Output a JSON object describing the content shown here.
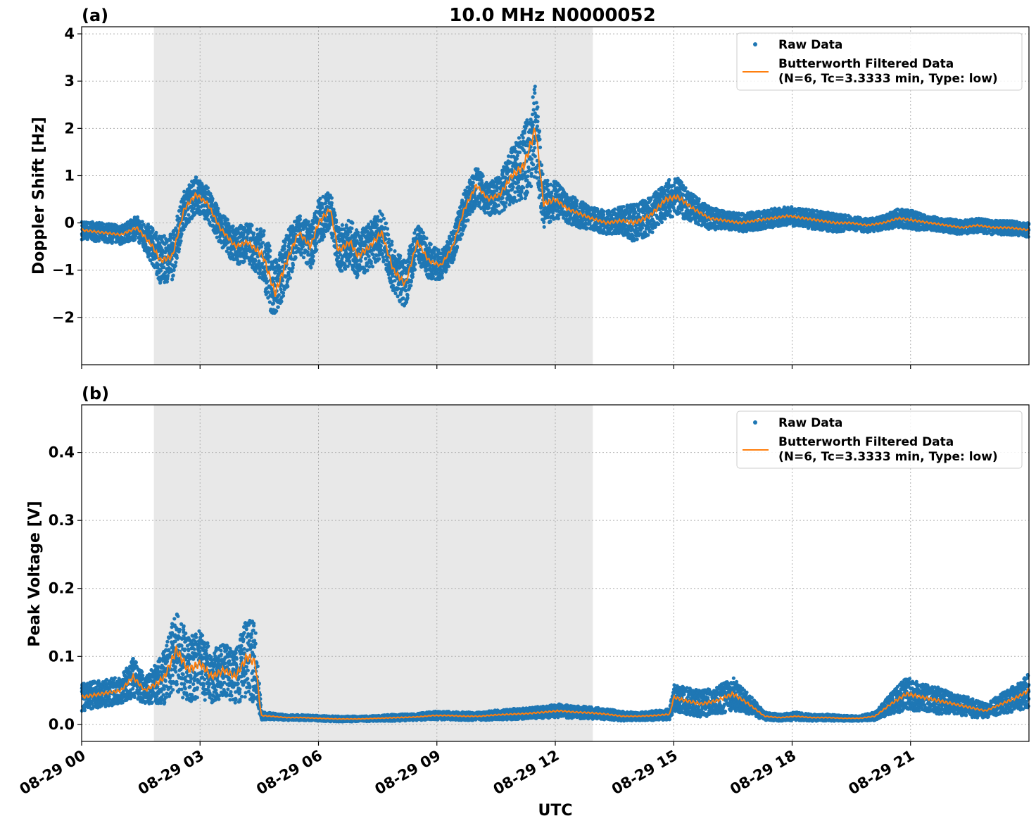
{
  "figure": {
    "title": "10.0 MHz N0000052",
    "xlabel": "UTC"
  },
  "colors": {
    "raw": "#1f77b4",
    "filtered": "#ff7f0e",
    "shade": "#e8e8e8",
    "grid": "#b0b0b0"
  },
  "legend": {
    "raw_label": "Raw Data",
    "filtered_line1": "Butterworth Filtered Data",
    "filtered_line2": "(N=6, Tc=3.3333 min, Type: low)"
  },
  "chart_data": [
    {
      "type": "scatter",
      "panel_label": "(a)",
      "title": "10.0 MHz N0000052",
      "xlabel": "",
      "ylabel": "Doppler Shift [Hz]",
      "xlim": [
        0,
        24
      ],
      "ylim": [
        -3.0,
        4.15
      ],
      "yticks": [
        -2,
        -1,
        0,
        1,
        2,
        3,
        4
      ],
      "ytick_labels": [
        "−2",
        "−1",
        "0",
        "1",
        "2",
        "3",
        "4"
      ],
      "xticks": [
        0,
        3,
        6,
        9,
        12,
        15,
        18,
        21
      ],
      "xtick_labels": [
        "08-29 00",
        "08-29 03",
        "08-29 06",
        "08-29 09",
        "08-29 12",
        "08-29 15",
        "08-29 18",
        "08-29 21"
      ],
      "shaded_span": [
        1.83,
        12.95
      ],
      "grid": true,
      "legend_position": "top-right",
      "series": [
        {
          "name": "Raw Data",
          "style": "points",
          "x": [
            0.0,
            0.5,
            1.0,
            1.4,
            1.8,
            2.0,
            2.3,
            2.6,
            2.9,
            3.2,
            3.5,
            3.9,
            4.2,
            4.6,
            4.9,
            5.2,
            5.5,
            5.8,
            6.0,
            6.3,
            6.5,
            6.8,
            7.0,
            7.3,
            7.6,
            7.9,
            8.2,
            8.5,
            8.8,
            9.1,
            9.4,
            9.7,
            10.0,
            10.3,
            10.6,
            10.9,
            11.2,
            11.5,
            11.7,
            12.0,
            12.3,
            12.6,
            12.9,
            13.3,
            13.7,
            14.0,
            14.4,
            14.8,
            15.1,
            15.5,
            15.9,
            16.3,
            16.7,
            17.1,
            17.5,
            17.9,
            18.3,
            18.7,
            19.1,
            19.5,
            19.9,
            20.3,
            20.7,
            21.1,
            21.5,
            21.9,
            22.3,
            22.7,
            23.1,
            23.5,
            23.99
          ],
          "y": [
            -0.15,
            -0.2,
            -0.25,
            -0.1,
            -0.5,
            -0.8,
            -0.7,
            0.3,
            0.6,
            0.4,
            -0.1,
            -0.5,
            -0.4,
            -0.7,
            -1.5,
            -0.8,
            -0.2,
            -0.5,
            0.0,
            0.3,
            -0.6,
            -0.4,
            -0.7,
            -0.5,
            -0.2,
            -1.0,
            -1.3,
            -0.4,
            -0.8,
            -0.9,
            -0.5,
            0.3,
            0.8,
            0.5,
            0.6,
            1.0,
            1.2,
            2.0,
            0.4,
            0.5,
            0.3,
            0.2,
            0.1,
            0.0,
            0.05,
            0.0,
            0.15,
            0.5,
            0.55,
            0.3,
            0.1,
            0.05,
            0.0,
            0.05,
            0.1,
            0.15,
            0.1,
            0.05,
            0.0,
            0.0,
            -0.05,
            0.0,
            0.1,
            0.05,
            0.0,
            -0.05,
            -0.1,
            -0.05,
            -0.1,
            -0.1,
            -0.15
          ],
          "spread": [
            0.2,
            0.2,
            0.2,
            0.25,
            0.4,
            0.5,
            0.5,
            0.4,
            0.4,
            0.35,
            0.35,
            0.4,
            0.4,
            0.6,
            0.7,
            0.6,
            0.4,
            0.5,
            0.5,
            0.4,
            0.5,
            0.5,
            0.5,
            0.5,
            0.5,
            0.5,
            0.5,
            0.4,
            0.4,
            0.3,
            0.35,
            0.4,
            0.4,
            0.35,
            0.4,
            0.6,
            0.8,
            1.0,
            0.5,
            0.4,
            0.3,
            0.3,
            0.25,
            0.25,
            0.3,
            0.4,
            0.4,
            0.4,
            0.4,
            0.3,
            0.25,
            0.2,
            0.2,
            0.2,
            0.2,
            0.2,
            0.2,
            0.2,
            0.2,
            0.15,
            0.15,
            0.15,
            0.2,
            0.2,
            0.15,
            0.15,
            0.15,
            0.15,
            0.15,
            0.15,
            0.15
          ]
        },
        {
          "name": "Butterworth Filtered Data (N=6, Tc=3.3333 min, Type: low)",
          "style": "line",
          "x": [
            0.0,
            0.5,
            1.0,
            1.4,
            1.8,
            2.0,
            2.3,
            2.6,
            2.9,
            3.2,
            3.5,
            3.9,
            4.2,
            4.6,
            4.9,
            5.2,
            5.5,
            5.8,
            6.0,
            6.3,
            6.5,
            6.8,
            7.0,
            7.3,
            7.6,
            7.9,
            8.2,
            8.5,
            8.8,
            9.1,
            9.4,
            9.7,
            10.0,
            10.3,
            10.6,
            10.9,
            11.2,
            11.5,
            11.7,
            12.0,
            12.3,
            12.6,
            12.9,
            13.3,
            13.7,
            14.0,
            14.4,
            14.8,
            15.1,
            15.5,
            15.9,
            16.3,
            16.7,
            17.1,
            17.5,
            17.9,
            18.3,
            18.7,
            19.1,
            19.5,
            19.9,
            20.3,
            20.7,
            21.1,
            21.5,
            21.9,
            22.3,
            22.7,
            23.1,
            23.5,
            23.99
          ],
          "y": [
            -0.15,
            -0.2,
            -0.25,
            -0.1,
            -0.5,
            -0.8,
            -0.7,
            0.3,
            0.6,
            0.4,
            -0.1,
            -0.5,
            -0.4,
            -0.7,
            -1.5,
            -0.8,
            -0.2,
            -0.5,
            0.0,
            0.3,
            -0.6,
            -0.4,
            -0.7,
            -0.5,
            -0.2,
            -1.0,
            -1.3,
            -0.4,
            -0.8,
            -0.9,
            -0.5,
            0.3,
            0.8,
            0.5,
            0.6,
            1.0,
            1.2,
            2.0,
            0.4,
            0.5,
            0.3,
            0.2,
            0.1,
            0.0,
            0.05,
            0.0,
            0.15,
            0.5,
            0.55,
            0.3,
            0.1,
            0.05,
            0.0,
            0.05,
            0.1,
            0.15,
            0.1,
            0.05,
            0.0,
            0.0,
            -0.05,
            0.0,
            0.1,
            0.05,
            0.0,
            -0.05,
            -0.1,
            -0.05,
            -0.1,
            -0.1,
            -0.15
          ]
        }
      ]
    },
    {
      "type": "scatter",
      "panel_label": "(b)",
      "title": "",
      "xlabel": "UTC",
      "ylabel": "Peak Voltage [V]",
      "xlim": [
        0,
        24
      ],
      "ylim": [
        -0.025,
        0.47
      ],
      "yticks": [
        0.0,
        0.1,
        0.2,
        0.3,
        0.4
      ],
      "ytick_labels": [
        "0.0",
        "0.1",
        "0.2",
        "0.3",
        "0.4"
      ],
      "xticks": [
        0,
        3,
        6,
        9,
        12,
        15,
        18,
        21
      ],
      "xtick_labels": [
        "08-29 00",
        "08-29 03",
        "08-29 06",
        "08-29 09",
        "08-29 12",
        "08-29 15",
        "08-29 18",
        "08-29 21"
      ],
      "shaded_span": [
        1.83,
        12.95
      ],
      "grid": true,
      "legend_position": "top-right",
      "series": [
        {
          "name": "Raw Data",
          "style": "points",
          "x": [
            0.0,
            0.5,
            1.0,
            1.3,
            1.6,
            1.9,
            2.1,
            2.4,
            2.7,
            3.0,
            3.3,
            3.6,
            3.9,
            4.2,
            4.4,
            4.55,
            4.8,
            5.2,
            5.6,
            6.0,
            6.5,
            7.0,
            7.5,
            8.0,
            8.5,
            8.9,
            9.3,
            9.7,
            10.1,
            10.5,
            10.9,
            11.3,
            11.7,
            12.1,
            12.5,
            12.9,
            13.3,
            13.7,
            14.1,
            14.5,
            14.9,
            15.0,
            15.3,
            15.7,
            16.1,
            16.5,
            16.9,
            17.3,
            17.7,
            18.1,
            18.5,
            18.9,
            19.3,
            19.7,
            20.1,
            20.5,
            20.9,
            21.3,
            21.7,
            22.1,
            22.5,
            22.9,
            23.3,
            23.7,
            23.99
          ],
          "y": [
            0.04,
            0.045,
            0.05,
            0.07,
            0.05,
            0.06,
            0.07,
            0.11,
            0.08,
            0.09,
            0.07,
            0.08,
            0.07,
            0.1,
            0.09,
            0.013,
            0.012,
            0.01,
            0.01,
            0.009,
            0.008,
            0.008,
            0.009,
            0.01,
            0.011,
            0.013,
            0.013,
            0.012,
            0.012,
            0.014,
            0.015,
            0.016,
            0.018,
            0.02,
            0.018,
            0.017,
            0.015,
            0.012,
            0.012,
            0.013,
            0.015,
            0.04,
            0.035,
            0.03,
            0.035,
            0.045,
            0.03,
            0.012,
            0.01,
            0.012,
            0.01,
            0.01,
            0.009,
            0.009,
            0.012,
            0.03,
            0.045,
            0.04,
            0.035,
            0.03,
            0.025,
            0.02,
            0.03,
            0.04,
            0.05
          ],
          "spread": [
            0.02,
            0.02,
            0.02,
            0.03,
            0.02,
            0.03,
            0.04,
            0.06,
            0.05,
            0.05,
            0.04,
            0.04,
            0.04,
            0.06,
            0.06,
            0.006,
            0.005,
            0.004,
            0.004,
            0.004,
            0.004,
            0.004,
            0.004,
            0.005,
            0.005,
            0.006,
            0.006,
            0.006,
            0.006,
            0.007,
            0.008,
            0.008,
            0.009,
            0.01,
            0.009,
            0.009,
            0.008,
            0.007,
            0.006,
            0.007,
            0.008,
            0.02,
            0.02,
            0.02,
            0.02,
            0.025,
            0.015,
            0.006,
            0.005,
            0.006,
            0.005,
            0.005,
            0.004,
            0.004,
            0.006,
            0.015,
            0.025,
            0.02,
            0.02,
            0.015,
            0.015,
            0.01,
            0.015,
            0.02,
            0.025
          ]
        },
        {
          "name": "Butterworth Filtered Data (N=6, Tc=3.3333 min, Type: low)",
          "style": "line",
          "x": [
            0.0,
            0.5,
            1.0,
            1.3,
            1.6,
            1.9,
            2.1,
            2.4,
            2.7,
            3.0,
            3.3,
            3.6,
            3.9,
            4.2,
            4.4,
            4.55,
            4.8,
            5.2,
            5.6,
            6.0,
            6.5,
            7.0,
            7.5,
            8.0,
            8.5,
            8.9,
            9.3,
            9.7,
            10.1,
            10.5,
            10.9,
            11.3,
            11.7,
            12.1,
            12.5,
            12.9,
            13.3,
            13.7,
            14.1,
            14.5,
            14.9,
            15.0,
            15.3,
            15.7,
            16.1,
            16.5,
            16.9,
            17.3,
            17.7,
            18.1,
            18.5,
            18.9,
            19.3,
            19.7,
            20.1,
            20.5,
            20.9,
            21.3,
            21.7,
            22.1,
            22.5,
            22.9,
            23.3,
            23.7,
            23.99
          ],
          "y": [
            0.04,
            0.045,
            0.05,
            0.07,
            0.05,
            0.06,
            0.07,
            0.11,
            0.08,
            0.09,
            0.07,
            0.08,
            0.07,
            0.1,
            0.09,
            0.013,
            0.012,
            0.01,
            0.01,
            0.009,
            0.008,
            0.008,
            0.009,
            0.01,
            0.011,
            0.013,
            0.013,
            0.012,
            0.012,
            0.014,
            0.015,
            0.016,
            0.018,
            0.02,
            0.018,
            0.017,
            0.015,
            0.012,
            0.012,
            0.013,
            0.015,
            0.04,
            0.035,
            0.03,
            0.035,
            0.045,
            0.03,
            0.012,
            0.01,
            0.012,
            0.01,
            0.01,
            0.009,
            0.009,
            0.012,
            0.03,
            0.045,
            0.04,
            0.035,
            0.03,
            0.025,
            0.02,
            0.03,
            0.04,
            0.05
          ]
        }
      ]
    }
  ]
}
